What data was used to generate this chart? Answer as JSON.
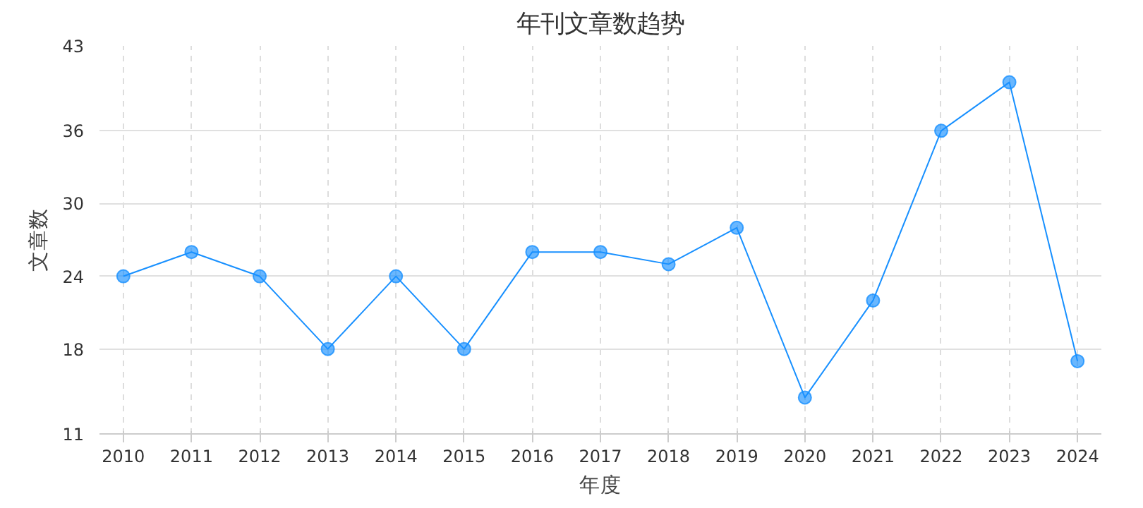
{
  "chart_data": {
    "type": "line",
    "title": "年刊文章数趋势",
    "xlabel": "年度",
    "ylabel": "文章数",
    "categories": [
      "2010",
      "2011",
      "2012",
      "2013",
      "2014",
      "2015",
      "2016",
      "2017",
      "2018",
      "2019",
      "2020",
      "2021",
      "2022",
      "2023",
      "2024"
    ],
    "series": [
      {
        "color": "#1890ff",
        "values": [
          24,
          26,
          24,
          18,
          24,
          18,
          26,
          26,
          25,
          28,
          14,
          22,
          36,
          40,
          17
        ]
      }
    ],
    "ylim": [
      11,
      43
    ],
    "yticks": [
      11,
      18,
      24,
      30,
      36,
      43
    ],
    "grid": true,
    "marker": "circle",
    "line_style": "solid"
  }
}
